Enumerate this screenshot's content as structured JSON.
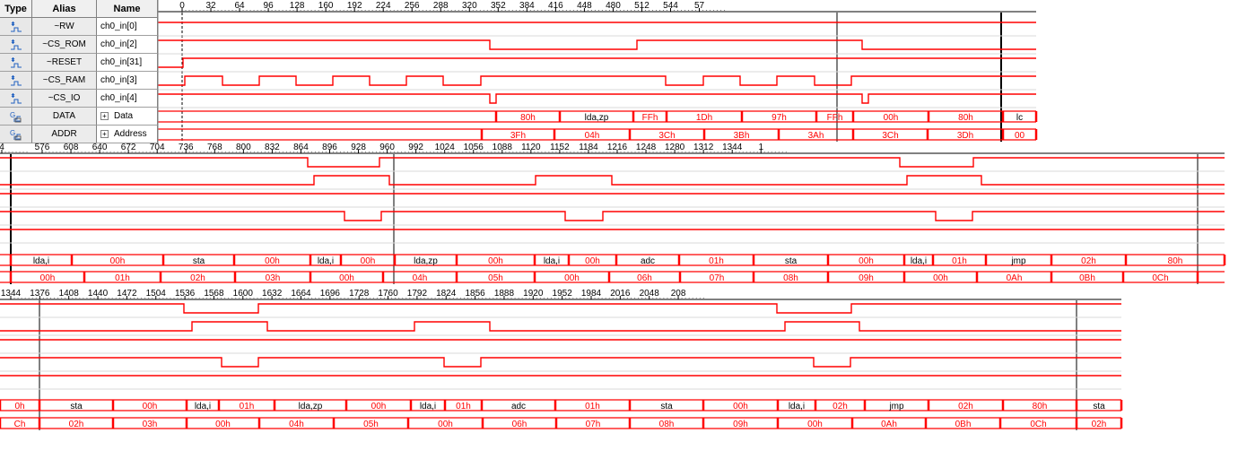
{
  "columns": {
    "type": "Type",
    "alias": "Alias",
    "name": "Name"
  },
  "signals": [
    {
      "alias": "~RW",
      "name": "ch0_in[0]",
      "icon": "input-signal-icon",
      "bus": false
    },
    {
      "alias": "~CS_ROM",
      "name": "ch0_in[2]",
      "icon": "input-signal-icon",
      "bus": false
    },
    {
      "alias": "~RESET",
      "name": "ch0_in[31]",
      "icon": "input-signal-icon",
      "bus": false
    },
    {
      "alias": "~CS_RAM",
      "name": "ch0_in[3]",
      "icon": "input-signal-icon",
      "bus": false
    },
    {
      "alias": "~CS_IO",
      "name": "ch0_in[4]",
      "icon": "input-signal-icon",
      "bus": false
    },
    {
      "alias": "DATA",
      "name": "Data",
      "icon": "bus-group-icon",
      "bus": true
    },
    {
      "alias": "ADDR",
      "name": "Address",
      "icon": "bus-group-icon",
      "bus": true
    }
  ],
  "colors": {
    "trace": "#ff0000",
    "ruler": "#000000",
    "gridline": "#ffffff"
  },
  "rows": [
    {
      "ruler": [
        "0",
        "32",
        "64",
        "96",
        "128",
        "160",
        "192",
        "224",
        "256",
        "288",
        "320",
        "352",
        "384",
        "416",
        "448",
        "480",
        "512",
        "544",
        "57"
      ],
      "data_values": [
        "80h",
        "lda,zp",
        "FFh",
        "1Dh",
        "97h",
        "FFh",
        "00h",
        "80h",
        "lc"
      ],
      "addr_values": [
        "3Fh",
        "04h",
        "3Ch",
        "3Bh",
        "3Ah",
        "3Ch",
        "3Dh",
        "00"
      ]
    },
    {
      "ruler": [
        "4",
        "576",
        "608",
        "640",
        "672",
        "704",
        "736",
        "768",
        "800",
        "832",
        "864",
        "896",
        "928",
        "960",
        "992",
        "1024",
        "1056",
        "1088",
        "1120",
        "1152",
        "1184",
        "1216",
        "1248",
        "1280",
        "1312",
        "1344",
        "1"
      ],
      "data_values": [
        "lda,i",
        "00h",
        "sta",
        "00h",
        "lda,i",
        "00h",
        "lda,zp",
        "00h",
        "lda,i",
        "00h",
        "adc",
        "01h",
        "sta",
        "00h",
        "lda,i",
        "01h",
        "jmp",
        "02h",
        "80h"
      ],
      "addr_values": [
        "00h",
        "01h",
        "02h",
        "03h",
        "00h",
        "04h",
        "05h",
        "00h",
        "06h",
        "07h",
        "08h",
        "09h",
        "00h",
        "0Ah",
        "0Bh",
        "0Ch"
      ]
    },
    {
      "ruler": [
        "1344",
        "1376",
        "1408",
        "1440",
        "1472",
        "1504",
        "1536",
        "1568",
        "1600",
        "1632",
        "1664",
        "1696",
        "1728",
        "1760",
        "1792",
        "1824",
        "1856",
        "1888",
        "1920",
        "1952",
        "1984",
        "2016",
        "2048",
        "208"
      ],
      "data_values": [
        "0h",
        "sta",
        "00h",
        "lda,i",
        "01h",
        "lda,zp",
        "00h",
        "lda,i",
        "01h",
        "adc",
        "01h",
        "sta",
        "00h",
        "lda,i",
        "02h",
        "jmp",
        "02h",
        "80h",
        "sta"
      ],
      "addr_values": [
        "Ch",
        "02h",
        "03h",
        "00h",
        "04h",
        "05h",
        "00h",
        "06h",
        "07h",
        "08h",
        "09h",
        "00h",
        "0Ah",
        "0Bh",
        "0Ch",
        "02h"
      ]
    }
  ]
}
